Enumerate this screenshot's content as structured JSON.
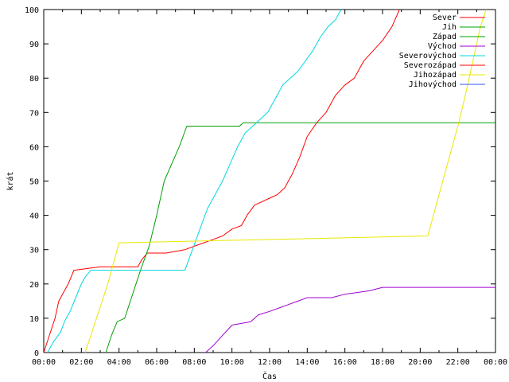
{
  "chart_data": {
    "type": "line",
    "title": "",
    "xlabel": "Čas",
    "ylabel": "krát",
    "xlim": [
      0,
      24
    ],
    "ylim": [
      0,
      100
    ],
    "x_ticks": [
      "00:00",
      "02:00",
      "04:00",
      "06:00",
      "08:00",
      "10:00",
      "12:00",
      "14:00",
      "16:00",
      "18:00",
      "20:00",
      "22:00",
      "00:00"
    ],
    "y_ticks": [
      0,
      10,
      20,
      30,
      40,
      50,
      60,
      70,
      80,
      90,
      100
    ],
    "grid": false,
    "legend_position": "top-right",
    "series": [
      {
        "name": "Sever",
        "color": "#ff0000",
        "x": [
          0,
          0.3,
          0.6,
          0.8,
          1.1,
          1.3,
          1.6,
          3.0,
          5.0,
          5.2,
          5.5,
          6.5,
          7.5,
          8.0,
          8.5,
          9.0,
          9.5,
          10.0,
          10.5,
          10.8,
          11.2,
          11.6,
          12.0,
          12.4,
          12.8,
          13.2,
          13.6,
          14.0,
          14.5,
          15.0,
          15.5,
          16.0,
          16.5,
          17.0,
          17.5,
          18.0,
          18.5,
          18.9
        ],
        "y": [
          0,
          5,
          10,
          15,
          18,
          20,
          24,
          25,
          25,
          27,
          29,
          29,
          30,
          31,
          32,
          33,
          34,
          36,
          37,
          40,
          43,
          44,
          45,
          46,
          48,
          52,
          57,
          63,
          67,
          70,
          75,
          78,
          80,
          85,
          88,
          91,
          95,
          100
        ]
      },
      {
        "name": "Jih",
        "color": "#00a000",
        "x": [
          3.3,
          3.6,
          3.9,
          4.3,
          4.6,
          4.9,
          5.2,
          5.6,
          6.0,
          6.4,
          6.8,
          7.2,
          7.6,
          10.4,
          10.6,
          24
        ],
        "y": [
          0,
          5,
          9,
          10,
          15,
          20,
          25,
          31,
          40,
          50,
          55,
          60,
          66,
          66,
          67,
          67
        ]
      },
      {
        "name": "Západ",
        "color": "#00a000",
        "x": [],
        "y": []
      },
      {
        "name": "Východ",
        "color": "#a000d0",
        "x": [
          8.6,
          9.0,
          9.5,
          10.0,
          11.0,
          11.4,
          12.0,
          12.5,
          13.0,
          13.5,
          14.0,
          14.7,
          15.3,
          16.0,
          17.3,
          18.0,
          24
        ],
        "y": [
          0,
          2,
          5,
          8,
          9,
          11,
          12,
          13,
          14,
          15,
          16,
          16,
          16,
          17,
          18,
          19,
          19
        ]
      },
      {
        "name": "Severovýchod",
        "color": "#00d8e0",
        "x": [
          0.2,
          0.5,
          0.9,
          1.1,
          1.4,
          1.7,
          2.0,
          2.2,
          2.5,
          7.5,
          7.9,
          8.3,
          8.7,
          9.1,
          9.5,
          9.9,
          10.3,
          10.7,
          11.1,
          11.5,
          11.9,
          12.3,
          12.7,
          13.1,
          13.5,
          13.9,
          14.3,
          14.7,
          15.1,
          15.5,
          15.8
        ],
        "y": [
          0,
          3,
          6,
          9,
          12,
          16,
          20,
          22,
          24,
          24,
          30,
          36,
          42,
          46,
          50,
          55,
          60,
          64,
          66,
          68,
          70,
          74,
          78,
          80,
          82,
          85,
          88,
          92,
          95,
          97,
          100
        ]
      },
      {
        "name": "Severozápad",
        "color": "#ff0000",
        "x": [],
        "y": []
      },
      {
        "name": "Jihozápad",
        "color": "#e8e800",
        "x": [
          2.2,
          2.5,
          2.8,
          3.1,
          3.4,
          3.7,
          4.0,
          20.4,
          20.8,
          21.2,
          21.6,
          22.0,
          22.4,
          22.8,
          23.2,
          23.5
        ],
        "y": [
          0,
          5,
          10,
          15,
          20,
          26,
          32,
          34,
          42,
          50,
          58,
          66,
          75,
          85,
          95,
          100
        ]
      },
      {
        "name": "Jihovýchod",
        "color": "#3050ff",
        "x": [],
        "y": []
      }
    ]
  }
}
